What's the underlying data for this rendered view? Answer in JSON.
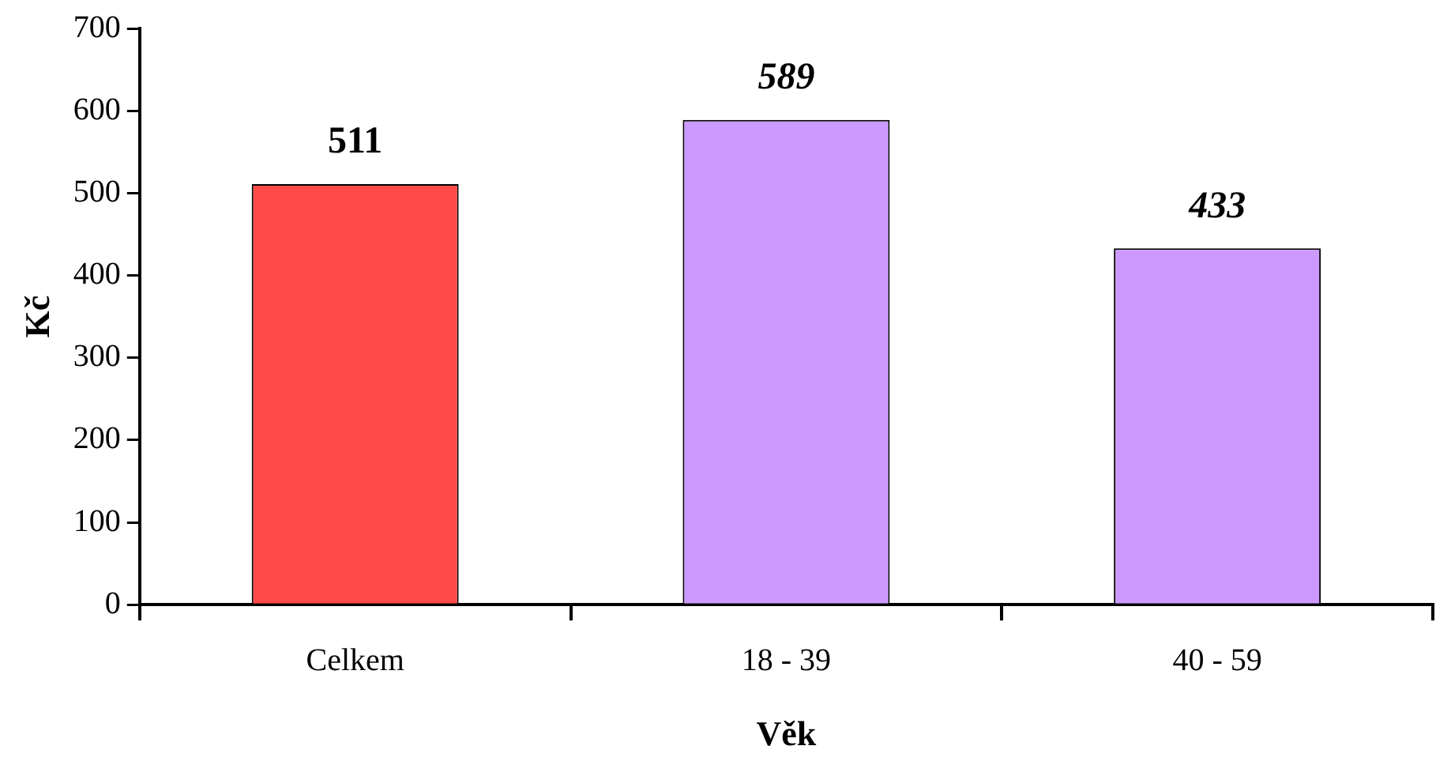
{
  "chart_data": {
    "type": "bar",
    "xlabel": "Věk",
    "ylabel": "Kč",
    "categories": [
      "Celkem",
      "18 - 39",
      "40 - 59"
    ],
    "values": [
      511,
      589,
      433
    ],
    "colors": [
      "#ff4a4a",
      "#cc99ff",
      "#cc99ff"
    ],
    "ylim": [
      0,
      700
    ],
    "yticks": [
      0,
      100,
      200,
      300,
      400,
      500,
      600,
      700
    ],
    "data_labels": true,
    "grid": false,
    "legend": false
  }
}
